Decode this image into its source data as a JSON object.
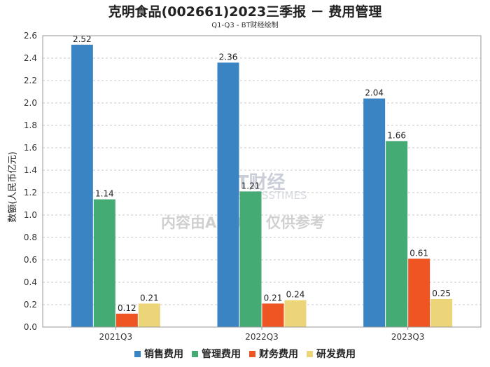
{
  "chart_data": {
    "type": "bar",
    "title": "克明食品(002661)2023三季报 － 费用管理",
    "subtitle": "Q1-Q3 - BT财经绘制",
    "ylabel": "数额(人民币亿元)",
    "xlabel": "",
    "categories": [
      "2021Q3",
      "2022Q3",
      "2023Q3"
    ],
    "ylim": [
      0,
      2.6
    ],
    "yticks": [
      0.0,
      0.2,
      0.4,
      0.6,
      0.8,
      1.0,
      1.2,
      1.4,
      1.6,
      1.8,
      2.0,
      2.2,
      2.4,
      2.6
    ],
    "grid": true,
    "legend_position": "bottom",
    "series": [
      {
        "name": "销售费用",
        "color": "#3a84c4",
        "values": [
          2.52,
          2.36,
          2.04
        ]
      },
      {
        "name": "管理费用",
        "color": "#45ab74",
        "values": [
          1.14,
          1.21,
          1.66
        ]
      },
      {
        "name": "财务费用",
        "color": "#ef5423",
        "values": [
          0.12,
          0.21,
          0.61
        ]
      },
      {
        "name": "研发费用",
        "color": "#ecd479",
        "values": [
          0.21,
          0.24,
          0.25
        ]
      }
    ]
  },
  "watermark": {
    "logo": "BT财经",
    "brand": "BUSINESSTIMES",
    "notice": "内容由AI生成，仅供参考"
  }
}
